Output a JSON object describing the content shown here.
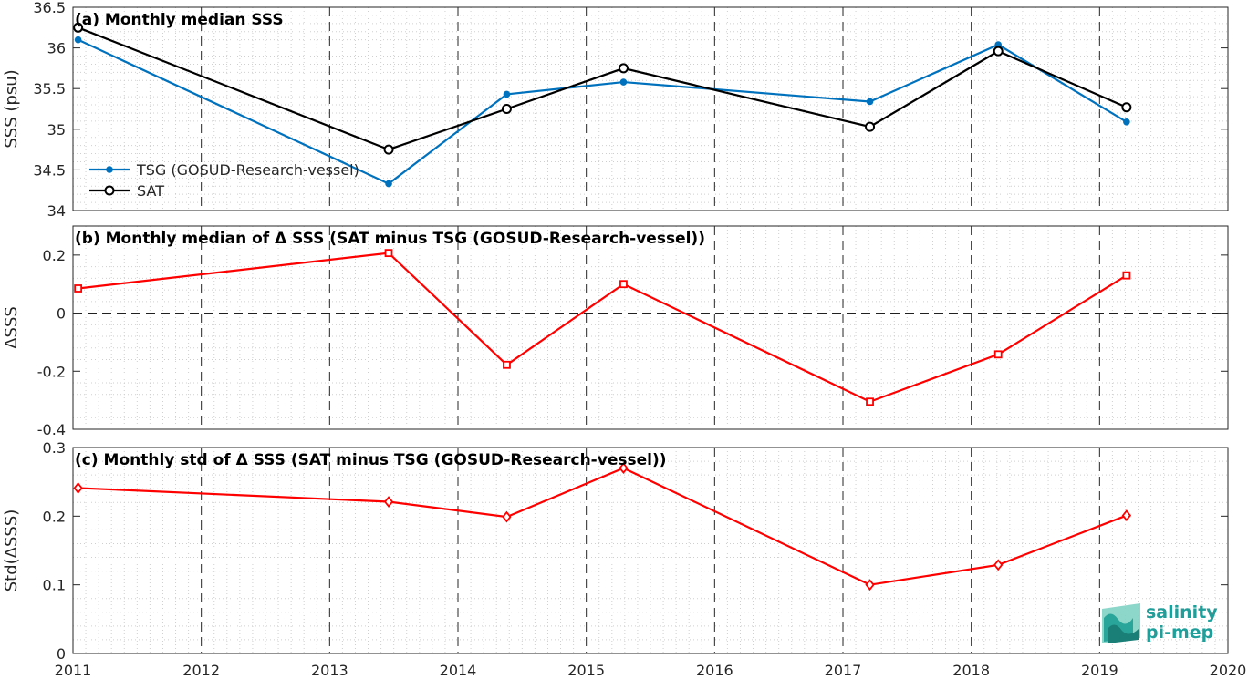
{
  "chart_data": [
    {
      "type": "line",
      "title": "(a) Monthly median SSS",
      "ylabel": "SSS (psu)",
      "xlim": [
        2011,
        2020
      ],
      "ylim": [
        34,
        36.5
      ],
      "yticks": [
        "34",
        "34.5",
        "35",
        "35.5",
        "36",
        "36.5"
      ],
      "ytick_values": [
        34,
        34.5,
        35,
        35.5,
        36,
        36.5
      ],
      "grid": "on",
      "legend_position": "lower-left",
      "series": [
        {
          "name": "TSG (GOSUD-Research-vessel)",
          "color": "#0072bd",
          "marker": "dot",
          "x": [
            2011.04,
            2013.46,
            2014.38,
            2015.29,
            2017.21,
            2018.21,
            2019.21
          ],
          "y": [
            36.1,
            34.33,
            35.43,
            35.58,
            35.34,
            36.04,
            35.09
          ]
        },
        {
          "name": "SAT",
          "color": "#000000",
          "marker": "circle",
          "x": [
            2011.04,
            2013.46,
            2014.38,
            2015.29,
            2017.21,
            2018.21,
            2019.21
          ],
          "y": [
            36.25,
            34.75,
            35.25,
            35.75,
            35.03,
            35.96,
            35.27
          ]
        }
      ]
    },
    {
      "type": "line",
      "title": "(b) Monthly median of Δ SSS (SAT minus TSG (GOSUD-Research-vessel))",
      "ylabel": "ΔSSS",
      "xlim": [
        2011,
        2020
      ],
      "ylim": [
        -0.4,
        0.3
      ],
      "yticks": [
        "-0.4",
        "-0.2",
        "0",
        "0.2"
      ],
      "ytick_values": [
        -0.4,
        -0.2,
        0,
        0.2
      ],
      "zero_line": "dashed",
      "grid": "on",
      "series": [
        {
          "color": "#ff0000",
          "marker": "square",
          "x": [
            2011.04,
            2013.46,
            2014.38,
            2015.29,
            2017.21,
            2018.21,
            2019.21
          ],
          "y": [
            0.085,
            0.207,
            -0.178,
            0.1,
            -0.305,
            -0.142,
            0.13
          ]
        }
      ]
    },
    {
      "type": "line",
      "title": "(c) Monthly std of Δ SSS (SAT minus TSG (GOSUD-Research-vessel))",
      "ylabel": "Std(ΔSSS)",
      "xlim": [
        2011,
        2020
      ],
      "ylim": [
        0,
        0.3
      ],
      "yticks": [
        "0",
        "0.1",
        "0.2",
        "0.3"
      ],
      "ytick_values": [
        0,
        0.1,
        0.2,
        0.3
      ],
      "grid": "on",
      "series": [
        {
          "color": "#ff0000",
          "marker": "diamond",
          "x": [
            2011.04,
            2013.46,
            2014.38,
            2015.29,
            2017.21,
            2018.21,
            2019.21
          ],
          "y": [
            0.241,
            0.221,
            0.199,
            0.27,
            0.1,
            0.129,
            0.201
          ]
        }
      ]
    }
  ],
  "xticks": [
    "2011",
    "2012",
    "2013",
    "2014",
    "2015",
    "2016",
    "2017",
    "2018",
    "2019",
    "2020"
  ],
  "xtick_values": [
    2011,
    2012,
    2013,
    2014,
    2015,
    2016,
    2017,
    2018,
    2019,
    2020
  ],
  "logo": {
    "line1": "salinity",
    "line2": "pi-mep",
    "color": "#1f9e9a"
  }
}
